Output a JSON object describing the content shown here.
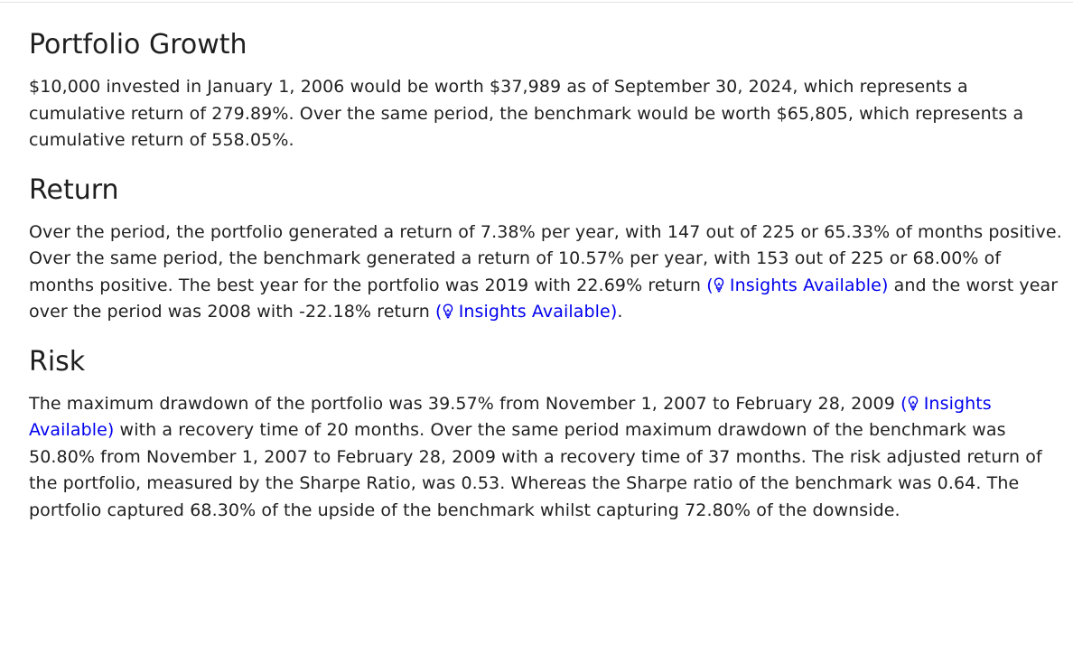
{
  "sections": {
    "growth": {
      "title": "Portfolio Growth",
      "text": "$10,000 invested in January 1, 2006 would be worth $37,989 as of September 30, 2024, which represents a cumulative return of 279.89%. Over the same period, the benchmark would be worth $65,805, which represents a cumulative return of 558.05%."
    },
    "return": {
      "title": "Return",
      "text_1": "Over the period, the portfolio generated a return of 7.38% per year, with 147 out of 225 or 65.33% of months positive. Over the same period, the benchmark generated a return of 10.57% per year, with 153 out of 225 or 68.00% of months positive. The best year for the portfolio was 2019 with 22.69% return ",
      "link_1": "Insights Available",
      "text_2": " and the worst year over the period was 2008 with -22.18% return ",
      "link_2": "Insights Available",
      "text_3": "."
    },
    "risk": {
      "title": "Risk",
      "text_1": "The maximum drawdown of the portfolio was 39.57% from November 1, 2007 to February 28, 2009 ",
      "link_1": "Insights Available",
      "text_2": " with a recovery time of 20 months. Over the same period maximum drawdown of the benchmark was 50.80% from November 1, 2007 to February 28, 2009 with a recovery time of 37 months. The risk adjusted return of the portfolio, measured by the Sharpe Ratio, was 0.53. Whereas the Sharpe ratio of the benchmark was 0.64. The portfolio captured 68.30% of the upside of the benchmark whilst capturing 72.80% of the downside."
    }
  },
  "icons": {
    "insight": "lightbulb-icon"
  },
  "colors": {
    "text": "#1f1f1f",
    "link": "#0000ee"
  }
}
